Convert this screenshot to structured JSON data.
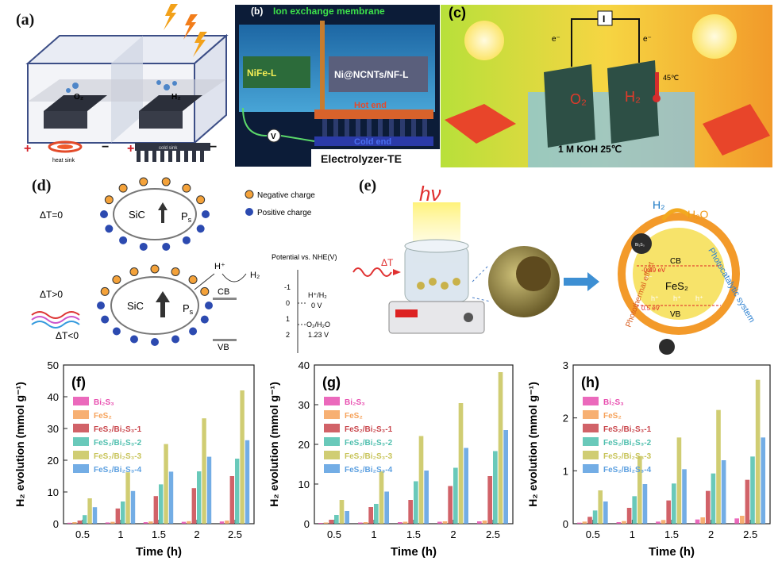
{
  "panels": {
    "a": {
      "label": "(a)",
      "o2": "O₂",
      "h2": "H₂",
      "heat_sink": "heat sink",
      "cold_sink": "cold sink",
      "plus": "+",
      "minus": "−"
    },
    "b": {
      "label": "(b)",
      "membrane": "Ion exchange membrane",
      "nife": "NiFe-L",
      "ninf": "Ni@NCNTs/NF-L",
      "hot": "Hot end",
      "cold": "Cold end",
      "v": "V",
      "title": "Electrolyzer-TE"
    },
    "c": {
      "label": "(c)",
      "o2": "O₂",
      "h2": "H₂",
      "electron": "e⁻",
      "temp": "45℃",
      "koh": "1 M KOH  25℃",
      "current": "I"
    },
    "d": {
      "label": "(d)",
      "dt0": "ΔT=0",
      "dtpos": "ΔT>0",
      "dtneg": "ΔT<0",
      "sic": "SiC",
      "ps": "P",
      "ps_sub": "s",
      "neg": "Negative charge",
      "pos": "Positive charge",
      "hplus": "H⁺",
      "h2": "H₂",
      "cb": "CB",
      "vb": "VB",
      "potential": "Potential vs. NHE(V)",
      "ticks": [
        "-1",
        "0",
        "1",
        "2"
      ],
      "hh2": "H⁺/H₂",
      "v0": "0 V",
      "o2h2o": "O₂/H₂O",
      "v123": "1.23 V"
    },
    "e": {
      "label": "(e)",
      "hv": "hν",
      "dt": "ΔT",
      "h2": "H₂",
      "h2o": "H₂O",
      "cb": "CB",
      "vb": "VB",
      "fes2": "FeS₂",
      "ev1": "-0.49 eV",
      "ev2": "0.5 eV",
      "photothermal": "Photothermal effect",
      "photocatalytic": "Photocatalytic system",
      "bi2s3": "Bi₂S₃",
      "eminus": "e⁻",
      "hplus": "h⁺"
    }
  },
  "chart_data": [
    {
      "type": "bar",
      "label": "(f)",
      "xlabel": "Time (h)",
      "ylabel": "H₂ evolution (mmol g⁻¹)",
      "categories": [
        "0.5",
        "1",
        "1.5",
        "2",
        "2.5"
      ],
      "ylim": [
        0,
        50
      ],
      "yticks": [
        "0",
        "10",
        "20",
        "30",
        "40",
        "50"
      ],
      "series": [
        {
          "name": "Bi₂S₃",
          "color": "#e84fb0",
          "values": [
            0.3,
            0.4,
            0.5,
            0.6,
            0.7
          ]
        },
        {
          "name": "FeS₂",
          "color": "#f6a25a",
          "values": [
            0.5,
            0.6,
            0.7,
            0.8,
            1.0
          ]
        },
        {
          "name": "FeS₂/Bi₂S₃-1",
          "color": "#c9474d",
          "values": [
            1.0,
            4.8,
            8.7,
            11.2,
            15.0
          ]
        },
        {
          "name": "FeS₂/Bi₂S₃-2",
          "color": "#4fbfae",
          "values": [
            2.7,
            7.0,
            12.4,
            16.5,
            20.5
          ]
        },
        {
          "name": "FeS₂/Bi₂S₃-3",
          "color": "#c8c45a",
          "values": [
            8.0,
            16.2,
            25.1,
            33.2,
            42.0
          ]
        },
        {
          "name": "FeS₂/Bi₂S₃-4",
          "color": "#5b9fe0",
          "values": [
            5.2,
            10.3,
            16.4,
            21.1,
            26.3
          ]
        }
      ]
    },
    {
      "type": "bar",
      "label": "(g)",
      "xlabel": "Time (h)",
      "ylabel": "H₂ evolution (mmol g⁻¹)",
      "categories": [
        "0.5",
        "1",
        "1.5",
        "2",
        "2.5"
      ],
      "ylim": [
        0,
        40
      ],
      "yticks": [
        "0",
        "10",
        "20",
        "30",
        "40"
      ],
      "series": [
        {
          "name": "Bi₂S₃",
          "color": "#e84fb0",
          "values": [
            0.2,
            0.3,
            0.4,
            0.5,
            0.6
          ]
        },
        {
          "name": "FeS₂",
          "color": "#f6a25a",
          "values": [
            0.3,
            0.4,
            0.5,
            0.6,
            0.8
          ]
        },
        {
          "name": "FeS₂/Bi₂S₃-1",
          "color": "#c9474d",
          "values": [
            1.0,
            4.2,
            6.0,
            9.5,
            12.0
          ]
        },
        {
          "name": "FeS₂/Bi₂S₃-2",
          "color": "#4fbfae",
          "values": [
            2.2,
            5.0,
            10.7,
            14.1,
            18.3
          ]
        },
        {
          "name": "FeS₂/Bi₂S₃-3",
          "color": "#c8c45a",
          "values": [
            6.0,
            13.2,
            22.1,
            30.4,
            38.2
          ]
        },
        {
          "name": "FeS₂/Bi₂S₃-4",
          "color": "#5b9fe0",
          "values": [
            3.2,
            8.1,
            13.4,
            19.1,
            23.6
          ]
        }
      ]
    },
    {
      "type": "bar",
      "label": "(h)",
      "xlabel": "Time (h)",
      "ylabel": "H₂ evolution (mmol g⁻¹)",
      "categories": [
        "0.5",
        "1",
        "1.5",
        "2",
        "2.5"
      ],
      "ylim": [
        0,
        3
      ],
      "yticks": [
        "0",
        "1",
        "2",
        "3"
      ],
      "series": [
        {
          "name": "Bi₂S₃",
          "color": "#e84fb0",
          "values": [
            0.02,
            0.03,
            0.04,
            0.08,
            0.1
          ]
        },
        {
          "name": "FeS₂",
          "color": "#f6a25a",
          "values": [
            0.04,
            0.05,
            0.07,
            0.12,
            0.15
          ]
        },
        {
          "name": "FeS₂/Bi₂S₃-1",
          "color": "#c9474d",
          "values": [
            0.13,
            0.3,
            0.44,
            0.62,
            0.83
          ]
        },
        {
          "name": "FeS₂/Bi₂S₃-2",
          "color": "#4fbfae",
          "values": [
            0.25,
            0.52,
            0.76,
            0.95,
            1.27
          ]
        },
        {
          "name": "FeS₂/Bi₂S₃-3",
          "color": "#c8c45a",
          "values": [
            0.63,
            1.28,
            1.63,
            2.15,
            2.72
          ]
        },
        {
          "name": "FeS₂/Bi₂S₃-4",
          "color": "#5b9fe0",
          "values": [
            0.42,
            0.75,
            1.03,
            1.2,
            1.63
          ]
        }
      ]
    }
  ]
}
